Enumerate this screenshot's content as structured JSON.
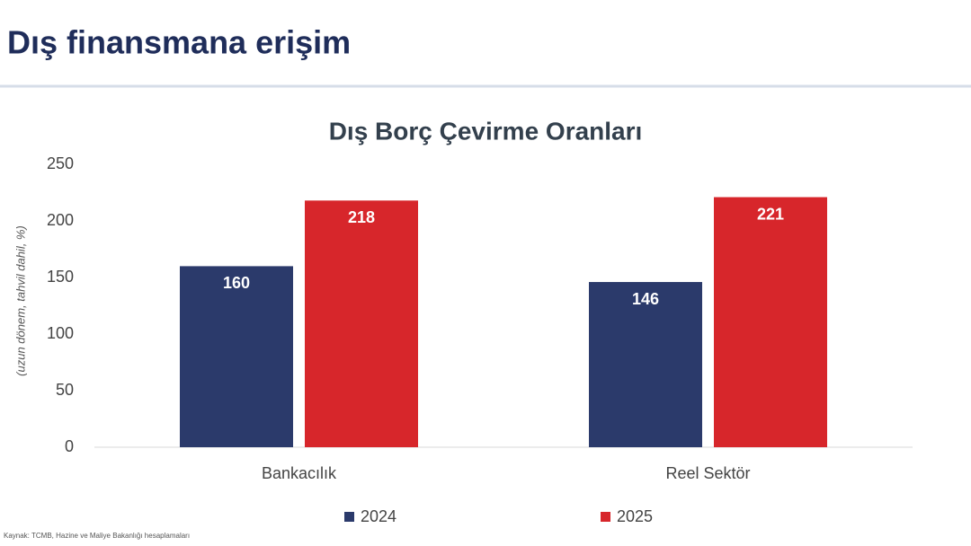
{
  "slide_title": "Dış finansmana erişim",
  "chart_data": {
    "type": "bar",
    "title": "Dış Borç Çevirme Oranları",
    "ylabel": "(uzun dönem, tahvil dahil, %)",
    "categories": [
      "Bankacılık",
      "Reel Sektör"
    ],
    "series": [
      {
        "name": "2024",
        "color": "#2b3a6b",
        "values": [
          160,
          146
        ]
      },
      {
        "name": "2025",
        "color": "#d7262b",
        "values": [
          218,
          221
        ]
      }
    ],
    "ylim": [
      0,
      250
    ],
    "yticks": [
      0,
      50,
      100,
      150,
      200,
      250
    ],
    "grid": false,
    "legend": "bottom"
  },
  "source": "Kaynak: TCMB, Hazine ve Maliye Bakanlığı hesaplamaları"
}
